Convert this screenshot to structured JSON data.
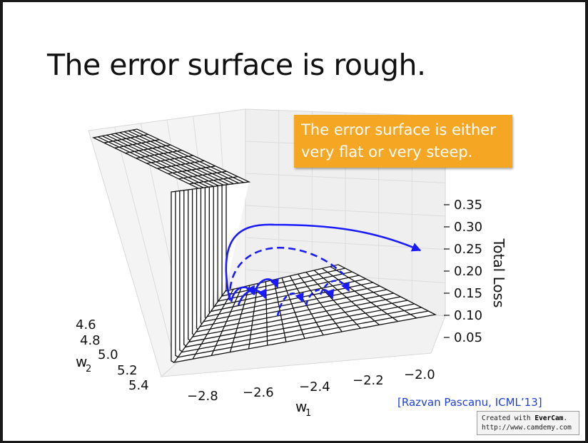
{
  "slide": {
    "title": "The error surface is rough.",
    "callout": {
      "line1": "The error surface is either",
      "line2": "very flat or very steep."
    },
    "citation": "[Razvan Pascanu, ICML’13]"
  },
  "chart_data": {
    "type": "surface",
    "zlabel": "Total Loss",
    "xlabel": "w1",
    "ylabel": "w2",
    "x_ticks": [
      "−2.8",
      "−2.6",
      "−2.4",
      "−2.2",
      "−2.0"
    ],
    "y_ticks": [
      "4.6",
      "4.8",
      "5.0",
      "5.2",
      "5.4"
    ],
    "z_ticks": [
      "0.35",
      "0.30",
      "0.25",
      "0.20",
      "0.15",
      "0.10",
      "0.05"
    ],
    "colors": {
      "arrow": "#1a1aff",
      "callout": "#f5a623",
      "citation": "#1f3fd8"
    }
  },
  "watermark": {
    "prefix": "Created with ",
    "brand": "EverCam",
    "suffix": ".",
    "url": "http://www.camdemy.com"
  }
}
